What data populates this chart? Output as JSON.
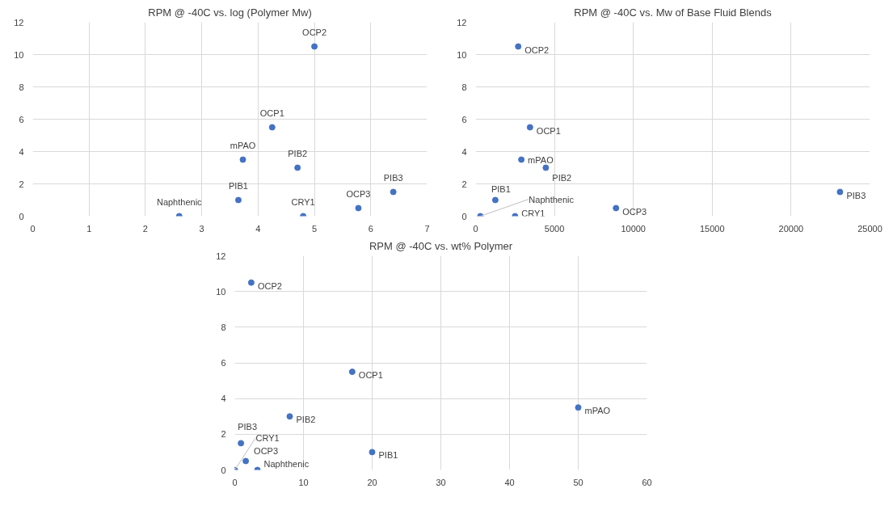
{
  "chart_data": [
    {
      "type": "scatter",
      "title": "RPM @ -40C vs. log (Polymer Mw)",
      "x": [
        2.6,
        3.65,
        3.73,
        4.25,
        4.7,
        5.0,
        4.8,
        5.78,
        6.4
      ],
      "series": [
        {
          "color": "#4472c4",
          "values": [
            0,
            1,
            3.5,
            5.5,
            3,
            10.5,
            0,
            0.5,
            1.5
          ]
        }
      ],
      "xlim": [
        0,
        7
      ],
      "ylim": [
        0,
        12
      ],
      "xticks": [
        0,
        1,
        2,
        3,
        4,
        5,
        6,
        7
      ],
      "yticks": [
        0,
        2,
        4,
        6,
        8,
        10,
        12
      ],
      "grid": true,
      "marker": "circle",
      "annotations": [
        {
          "text": "Naphthenic",
          "x": 2.6,
          "y": 0
        },
        {
          "text": "PIB1",
          "x": 3.65,
          "y": 1
        },
        {
          "text": "mPAO",
          "x": 3.73,
          "y": 3.5
        },
        {
          "text": "OCP1",
          "x": 4.25,
          "y": 5.5
        },
        {
          "text": "PIB2",
          "x": 4.7,
          "y": 3
        },
        {
          "text": "OCP2",
          "x": 5.0,
          "y": 10.5
        },
        {
          "text": "CRY1",
          "x": 4.8,
          "y": 0
        },
        {
          "text": "OCP3",
          "x": 5.78,
          "y": 0.5
        },
        {
          "text": "PIB3",
          "x": 6.4,
          "y": 1.5
        }
      ]
    },
    {
      "type": "scatter",
      "title": "RPM @ -40C vs. Mw of Base Fluid Blends",
      "x": [
        300,
        1250,
        2900,
        3450,
        4450,
        2700,
        2500,
        8900,
        23100
      ],
      "series": [
        {
          "color": "#4472c4",
          "values": [
            0,
            1,
            3.5,
            5.5,
            3,
            10.5,
            0,
            0.5,
            1.5
          ]
        }
      ],
      "xlim": [
        0,
        25000
      ],
      "ylim": [
        0,
        12
      ],
      "xticks": [
        0,
        5000,
        10000,
        15000,
        20000,
        25000
      ],
      "yticks": [
        0,
        2,
        4,
        6,
        8,
        10,
        12
      ],
      "grid": true,
      "marker": "circle",
      "annotations": [
        {
          "text": "Naphthenic",
          "x": 300,
          "y": 0
        },
        {
          "text": "PIB1",
          "x": 1250,
          "y": 1
        },
        {
          "text": "mPAO",
          "x": 2900,
          "y": 3.5
        },
        {
          "text": "OCP1",
          "x": 3450,
          "y": 5.5
        },
        {
          "text": "PIB2",
          "x": 4450,
          "y": 3
        },
        {
          "text": "OCP2",
          "x": 2700,
          "y": 10.5
        },
        {
          "text": "CRY1",
          "x": 2500,
          "y": 0
        },
        {
          "text": "OCP3",
          "x": 8900,
          "y": 0.5
        },
        {
          "text": "PIB3",
          "x": 23100,
          "y": 1.5
        }
      ]
    },
    {
      "type": "scatter",
      "title": "RPM @ -40C vs. wt% Polymer",
      "x": [
        3.3,
        20,
        50,
        17.1,
        8.0,
        2.4,
        0,
        1.6,
        0.9
      ],
      "series": [
        {
          "color": "#4472c4",
          "values": [
            0,
            1,
            3.5,
            5.5,
            3,
            10.5,
            0,
            0.5,
            1.5
          ]
        }
      ],
      "xlim": [
        0,
        60
      ],
      "ylim": [
        0,
        12
      ],
      "xticks": [
        0,
        10,
        20,
        30,
        40,
        50,
        60
      ],
      "yticks": [
        0,
        2,
        4,
        6,
        8,
        10,
        12
      ],
      "grid": true,
      "marker": "circle",
      "annotations": [
        {
          "text": "Naphthenic",
          "x": 3.3,
          "y": 0
        },
        {
          "text": "PIB1",
          "x": 20,
          "y": 1
        },
        {
          "text": "mPAO",
          "x": 50,
          "y": 3.5
        },
        {
          "text": "OCP1",
          "x": 17.1,
          "y": 5.5
        },
        {
          "text": "PIB2",
          "x": 8.0,
          "y": 3
        },
        {
          "text": "OCP2",
          "x": 2.4,
          "y": 10.5
        },
        {
          "text": "CRY1",
          "x": 0,
          "y": 0
        },
        {
          "text": "OCP3",
          "x": 1.6,
          "y": 0.5
        },
        {
          "text": "PIB3",
          "x": 0.9,
          "y": 1.5
        }
      ]
    }
  ]
}
